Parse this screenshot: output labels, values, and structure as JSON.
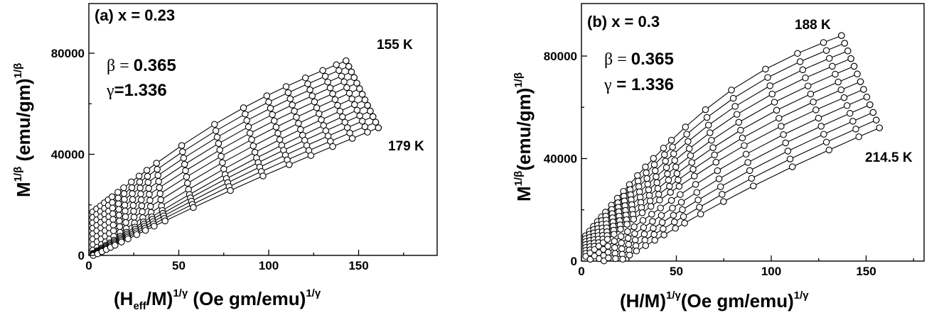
{
  "chart_data": [
    {
      "type": "scatter",
      "panel_label": "(a) x = 0.23",
      "beta_label": "β = ",
      "beta_value": "0.365",
      "gamma_label": "γ",
      "gamma_value": "=1.336",
      "xlabel": {
        "open": "(H",
        "sub": "eff",
        "mid": "/M)",
        "sup1": "1/γ",
        "rest": " (Oe gm/emu)",
        "sup2": "1/γ"
      },
      "ylabel": {
        "base": "M",
        "sup": "1/β",
        "rest": " (emu/gm)",
        "sup2": "1/β"
      },
      "xlim": [
        0,
        180
      ],
      "ylim": [
        0,
        100000
      ],
      "xticks": [
        "0",
        "50",
        "100",
        "150"
      ],
      "xtick_values": [
        0,
        50,
        100,
        150
      ],
      "yticks": [
        "0",
        "40000",
        "80000"
      ],
      "ytick_values": [
        0,
        40000,
        80000
      ],
      "annotations": [
        "155 K",
        "179 K"
      ],
      "series_count": 13,
      "series_endpoints": {
        "top": {
          "temp": "155 K",
          "x_end": 143,
          "y_end": 77000,
          "y_at_origin": 16000
        },
        "bottom": {
          "temp": "179 K",
          "x_end": 161,
          "y_end": 50500,
          "x_start": 3
        }
      },
      "columns_x": [
        2,
        4,
        6,
        8,
        10,
        12,
        15,
        18,
        22,
        26,
        30,
        35,
        48,
        65,
        80,
        92,
        102,
        112,
        121,
        128,
        133
      ],
      "marker": "open-circle"
    },
    {
      "type": "scatter",
      "panel_label": "(b) x = 0.3",
      "beta_label": "β = ",
      "beta_value": "0.365",
      "gamma_label": "γ",
      "gamma_value": " = 1.336",
      "xlabel": {
        "open": "(H/M)",
        "sup1": "1/γ",
        "rest": "(Oe gm/emu)",
        "sup2": "1/γ"
      },
      "ylabel": {
        "base": "M",
        "sup": "1/β",
        "rest": "(emu/gm)",
        "sup2": "1/β"
      },
      "xlim": [
        0,
        180
      ],
      "ylim": [
        0,
        95000
      ],
      "xticks": [
        "0",
        "50",
        "100",
        "150"
      ],
      "xtick_values": [
        0,
        50,
        100,
        150
      ],
      "yticks": [
        "0",
        "40000",
        "80000"
      ],
      "ytick_values": [
        0,
        40000,
        80000
      ],
      "annotations": [
        "188 K",
        "214.5 K"
      ],
      "series_count": 13,
      "series_endpoints": {
        "top": {
          "temp": "188 K",
          "x_end": 137,
          "y_end": 88000,
          "y_at_origin": 8000
        },
        "bottom": {
          "temp": "214.5 K",
          "x_end": 157,
          "y_end": 52000,
          "x_start": 20
        }
      },
      "columns_x": [
        2,
        4,
        6,
        8,
        10,
        12,
        15,
        18,
        21,
        24,
        28,
        32,
        36,
        41,
        45,
        52,
        62,
        75,
        92,
        108,
        121,
        130
      ],
      "marker": "open-circle"
    }
  ]
}
